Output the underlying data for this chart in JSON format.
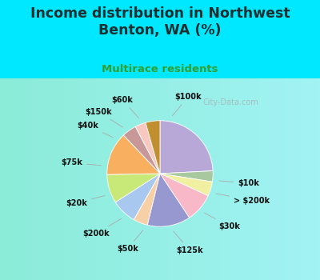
{
  "title": "Income distribution in Northwest\nBenton, WA (%)",
  "subtitle": "Multirace residents",
  "labels": [
    "$100k",
    "$10k",
    "> $200k",
    "$30k",
    "$125k",
    "$50k",
    "$200k",
    "$20k",
    "$75k",
    "$40k",
    "$150k",
    "$60k"
  ],
  "sizes": [
    22,
    3,
    4,
    8,
    12,
    4,
    7,
    8,
    12,
    4,
    3,
    4
  ],
  "colors": [
    "#b8a8d8",
    "#a8c8a0",
    "#f0f0a0",
    "#f8b8c8",
    "#9898d0",
    "#f8d0a8",
    "#a8c8f0",
    "#c8e878",
    "#f8b060",
    "#c89898",
    "#f8c8c0",
    "#c09030"
  ],
  "outer_bg": "#00e8ff",
  "chart_bg_outer": "#c8eec8",
  "chart_bg_inner": "#e8f8f0",
  "title_color": "#1a3030",
  "subtitle_color": "#30a030",
  "label_color": "#101010",
  "label_fontsize": 7,
  "title_fontsize": 12.5,
  "subtitle_fontsize": 9.5,
  "start_angle": 90,
  "label_angles": [
    11,
    97,
    110,
    132,
    168,
    196,
    220,
    248,
    278,
    308,
    322,
    340
  ],
  "label_r_text": [
    1.42,
    1.42,
    1.42,
    1.42,
    1.42,
    1.42,
    1.42,
    1.42,
    1.42,
    1.42,
    1.42,
    1.42
  ]
}
